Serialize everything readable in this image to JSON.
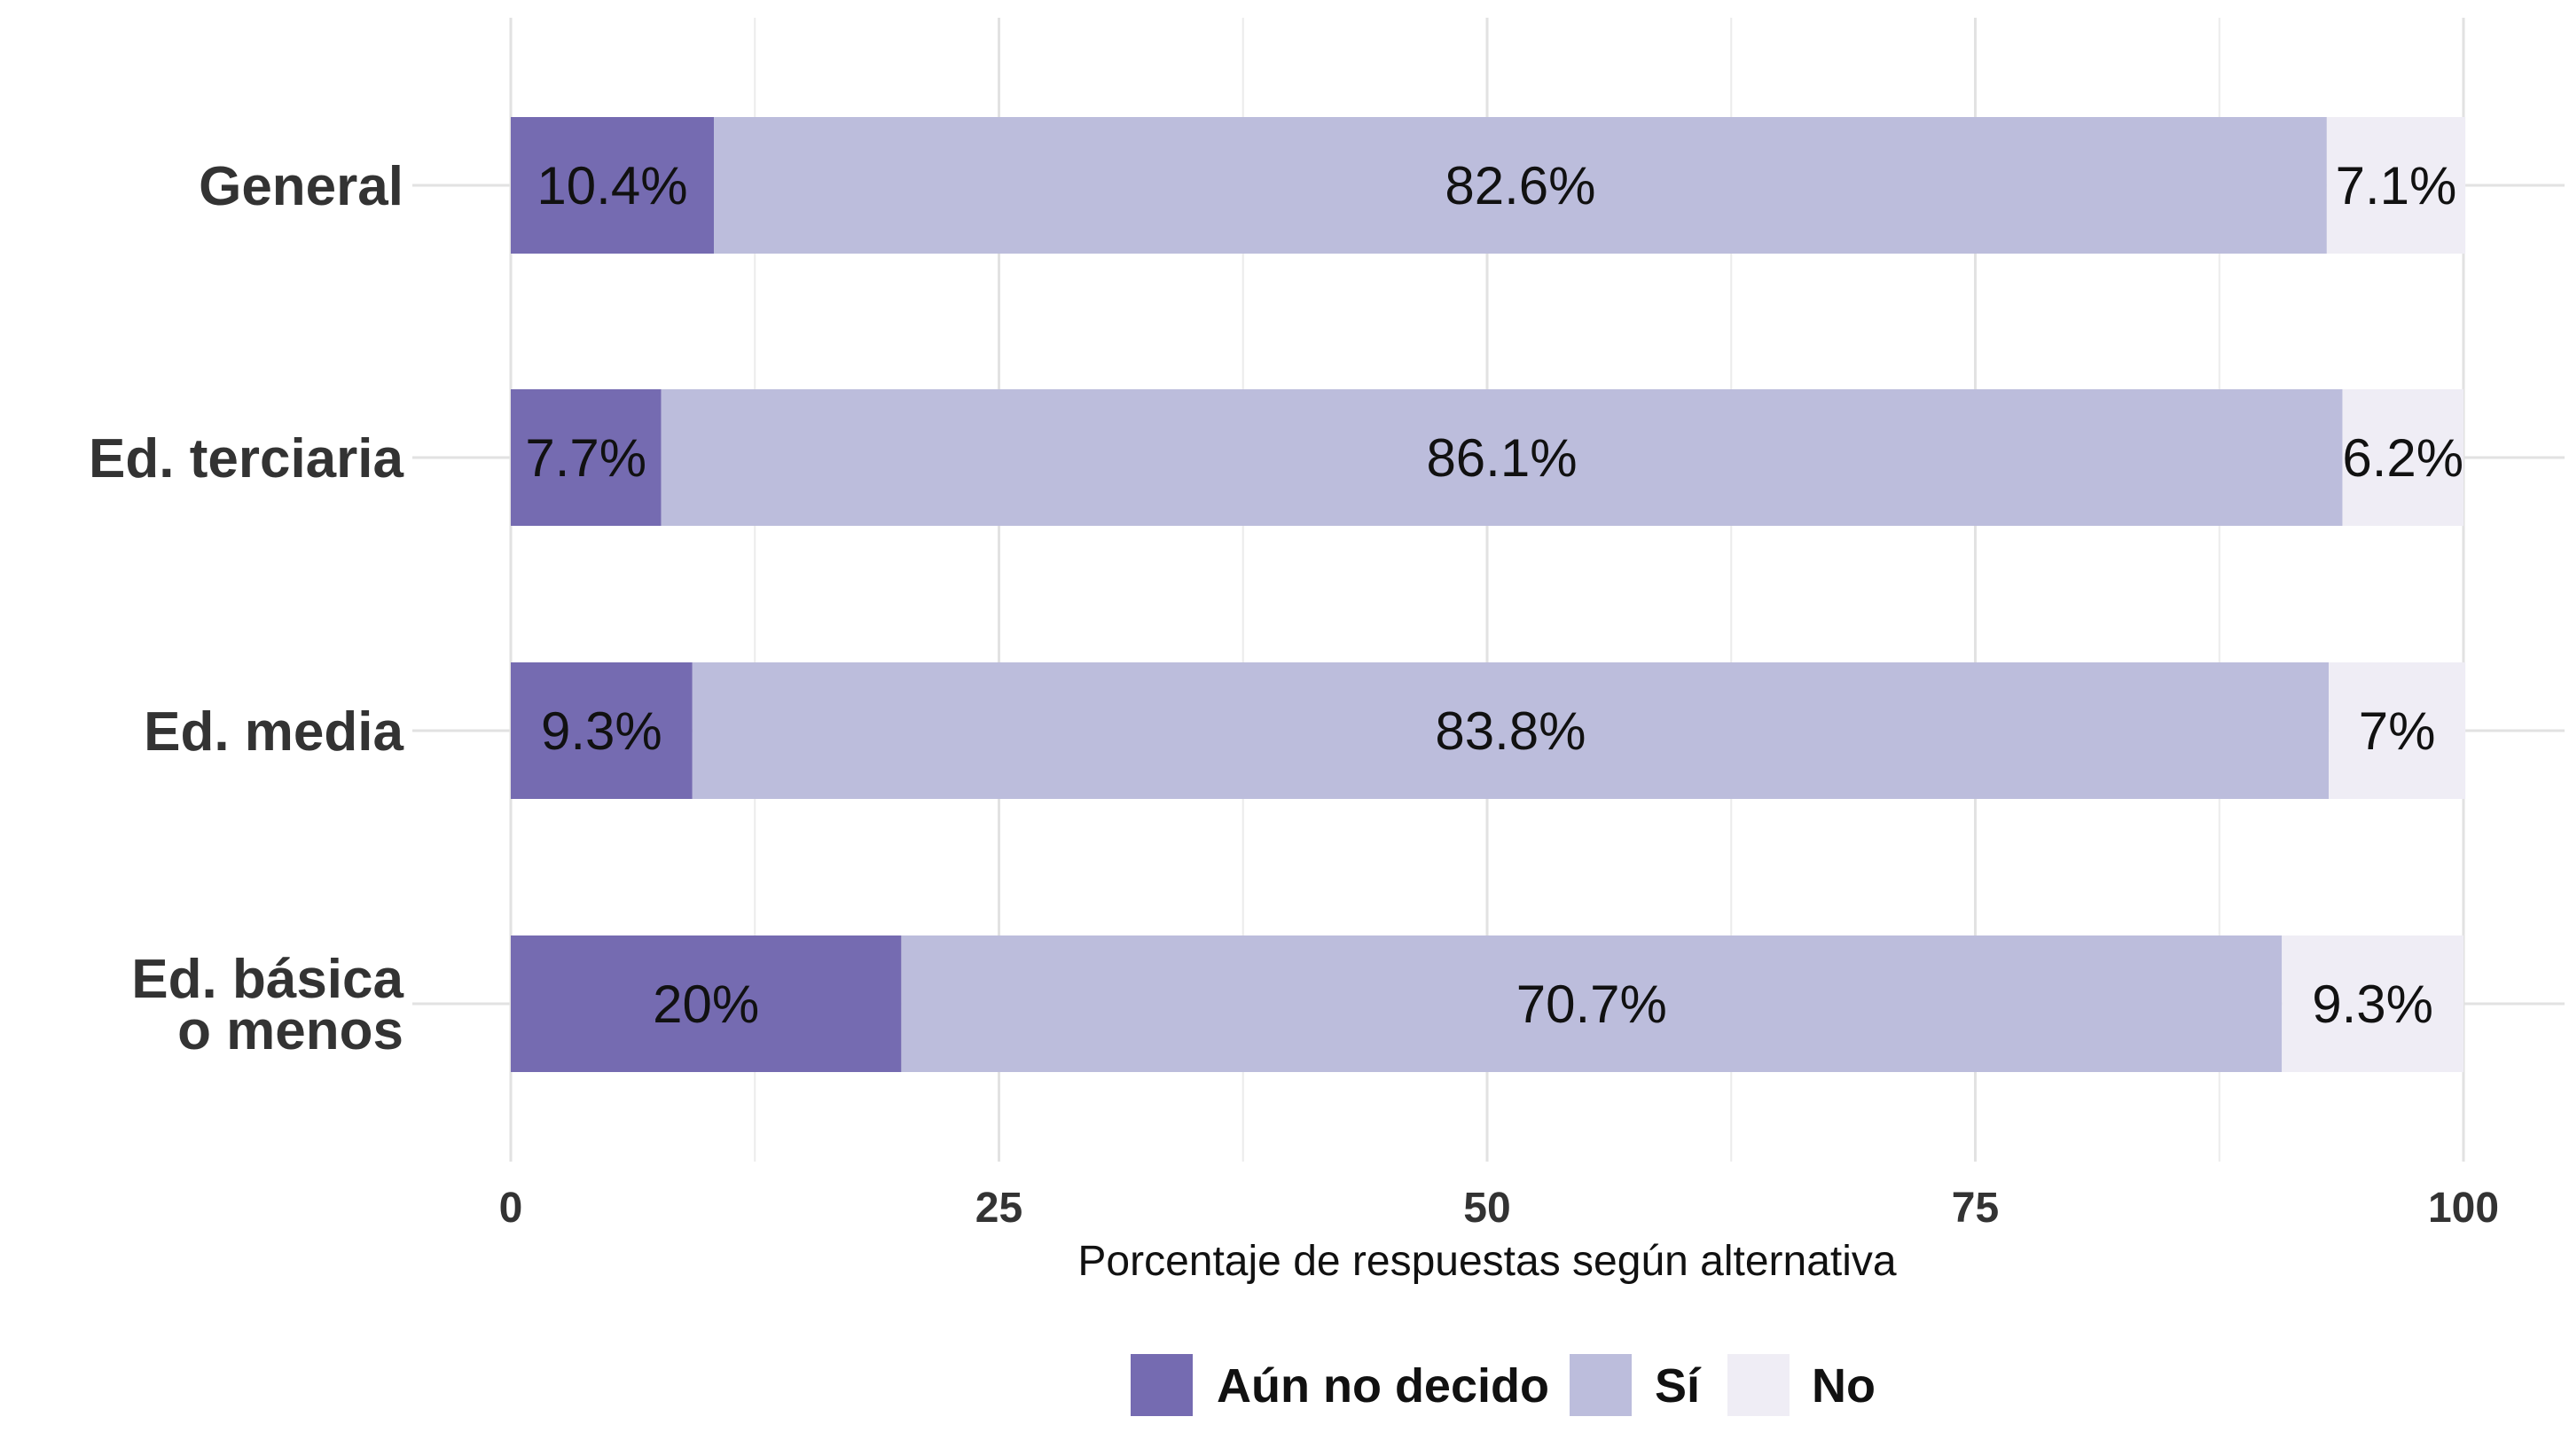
{
  "chart_data": {
    "type": "bar",
    "orientation": "horizontal",
    "stacked": true,
    "title": "",
    "xlabel": "Porcentaje de respuestas según alternativa",
    "ylabel": "",
    "xlim": [
      0,
      100
    ],
    "xticks": [
      0,
      25,
      50,
      75,
      100
    ],
    "xtick_labels": [
      "0",
      "25",
      "50",
      "75",
      "100"
    ],
    "grid": true,
    "legend_position": "bottom",
    "categories": [
      "General",
      "Ed. terciaria",
      "Ed. media",
      "Ed. básica\no menos"
    ],
    "series": [
      {
        "name": "Aún no decido",
        "color": "#756bb1",
        "values": [
          10.4,
          7.7,
          9.3,
          20
        ],
        "labels": [
          "10.4%",
          "7.7%",
          "9.3%",
          "20%"
        ]
      },
      {
        "name": "Sí",
        "color": "#bcbddc",
        "values": [
          82.6,
          86.1,
          83.8,
          70.7
        ],
        "labels": [
          "82.6%",
          "86.1%",
          "83.8%",
          "70.7%"
        ]
      },
      {
        "name": "No",
        "color": "#efedf5",
        "values": [
          7.1,
          6.2,
          7,
          9.3
        ],
        "labels": [
          "7.1%",
          "6.2%",
          "7%",
          "9.3%"
        ]
      }
    ]
  }
}
